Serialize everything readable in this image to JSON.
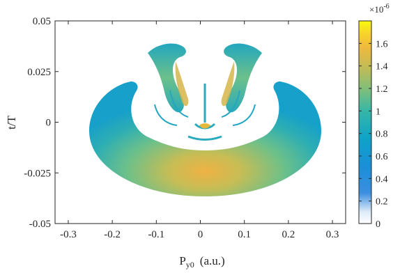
{
  "chart_data": {
    "type": "heatmap",
    "title": "",
    "xlabel": {
      "main": "P",
      "sub": "y0",
      "unit": "(a.u.)"
    },
    "ylabel": "t/T",
    "xlim": [
      -0.33,
      0.33
    ],
    "ylim": [
      -0.05,
      0.05
    ],
    "xticks": [
      {
        "value": -0.3,
        "label": "-0.3"
      },
      {
        "value": -0.2,
        "label": "-0.2"
      },
      {
        "value": -0.1,
        "label": "-0.1"
      },
      {
        "value": 0,
        "label": "0"
      },
      {
        "value": 0.1,
        "label": "0.1"
      },
      {
        "value": 0.2,
        "label": "0.2"
      },
      {
        "value": 0.3,
        "label": "0.3"
      }
    ],
    "yticks": [
      {
        "value": 0.05,
        "label": "0.05"
      },
      {
        "value": 0.025,
        "label": "0.025"
      },
      {
        "value": 0,
        "label": "0"
      },
      {
        "value": -0.025,
        "label": "-0.025"
      },
      {
        "value": -0.05,
        "label": "-0.05"
      }
    ],
    "colorbar": {
      "min": 0,
      "max": 1.8,
      "exponent_label": {
        "base": "×10",
        "power": "-6"
      },
      "colormap": "parula (white at low end)",
      "ticks": [
        {
          "value": 0,
          "label": "0"
        },
        {
          "value": 0.2,
          "label": "0.2"
        },
        {
          "value": 0.4,
          "label": "0.4"
        },
        {
          "value": 0.6,
          "label": "0.6"
        },
        {
          "value": 0.8,
          "label": "0.8"
        },
        {
          "value": 1.0,
          "label": "1"
        },
        {
          "value": 1.2,
          "label": "1.2"
        },
        {
          "value": 1.4,
          "label": "1.4"
        },
        {
          "value": 1.6,
          "label": "1.6"
        }
      ]
    },
    "distribution": {
      "description": "crescent-shaped probability density; peak ~1.45e-6 near (0, -0.026), edges ~0.8e-6; lobes at |Py0|~0.07-0.12 extend up to t/T~0.037",
      "main_band": {
        "py0_extent": [
          -0.26,
          0.26
        ],
        "t_extent": [
          -0.038,
          0.018
        ]
      },
      "upper_lobes": [
        {
          "py0_extent": [
            -0.14,
            -0.04
          ],
          "t_extent": [
            0.0,
            0.038
          ]
        },
        {
          "py0_extent": [
            0.04,
            0.14
          ],
          "t_extent": [
            0.0,
            0.038
          ]
        }
      ],
      "value_range": [
        0,
        1.55
      ]
    }
  },
  "colors": {
    "axis": "#262626",
    "background": "#ffffff"
  }
}
